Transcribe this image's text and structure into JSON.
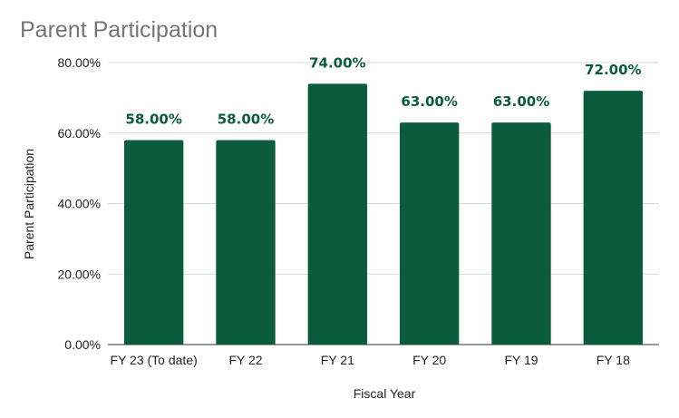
{
  "chart_data": {
    "type": "bar",
    "title": "Parent Participation",
    "xlabel": "Fiscal Year",
    "ylabel": "Parent Participation",
    "categories": [
      "FY 23 (To date)",
      "FY 22",
      "FY 21",
      "FY 20",
      "FY 19",
      "FY 18"
    ],
    "values": [
      58,
      58,
      74,
      63,
      63,
      72
    ],
    "data_labels": [
      "58.00%",
      "58.00%",
      "74.00%",
      "63.00%",
      "63.00%",
      "72.00%"
    ],
    "ylim": [
      0,
      80
    ],
    "yticks": [
      0,
      20,
      40,
      60,
      80
    ],
    "ytick_labels": [
      "0.00%",
      "20.00%",
      "40.00%",
      "60.00%",
      "80.00%"
    ],
    "grid": true,
    "legend": "none",
    "colors": {
      "bar": "#0b5c3e",
      "data_label": "#0b5c3e",
      "title": "#757575",
      "grid": "#d9d9d9"
    }
  }
}
